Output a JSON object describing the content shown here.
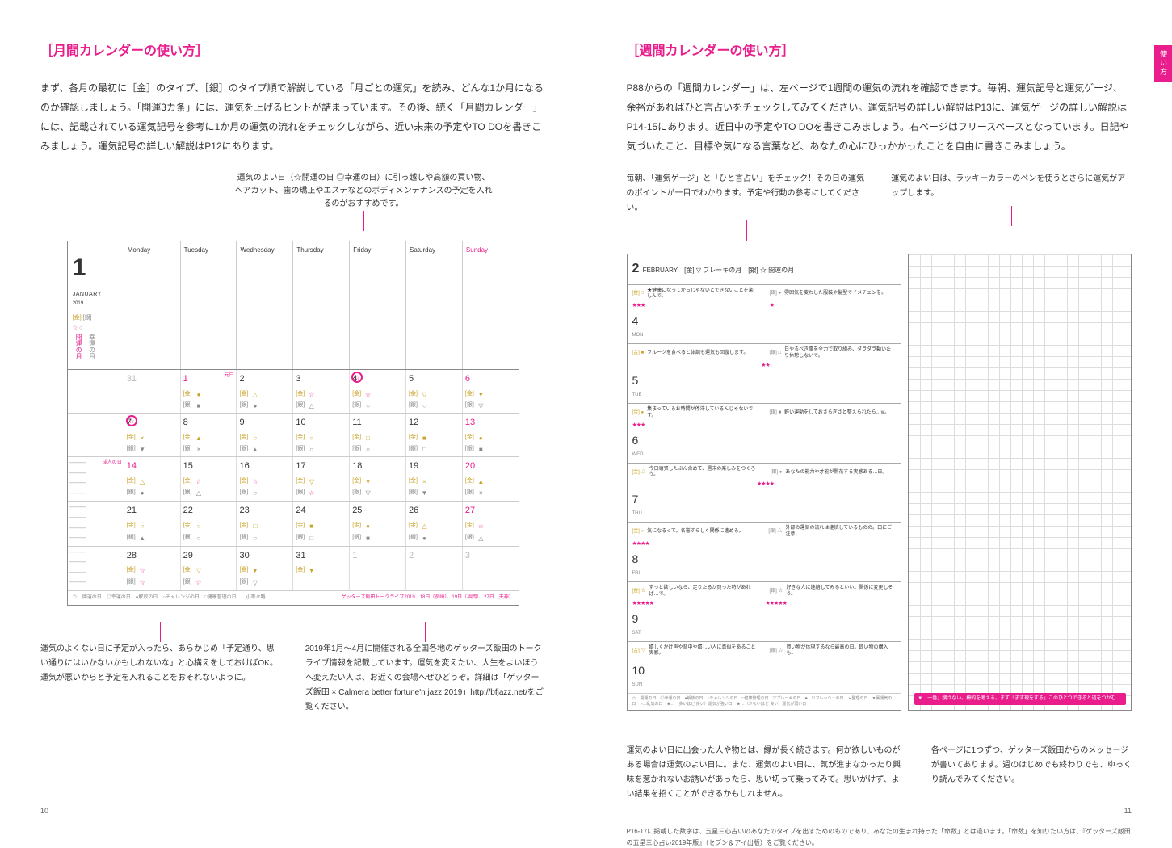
{
  "left": {
    "heading": "［月間カレンダーの使い方］",
    "body": "まず、各月の最初に［金］のタイプ、［銀］のタイプ順で解説している「月ごとの運気」を読み、どんな1か月になるのか確認しましょう。「開運3カ条」には、運気を上げるヒントが詰まっています。その後、続く「月間カレンダー」には、記載されている運気記号を参考に1か月の運気の流れをチェックしながら、近い未来の予定やTO DOを書きこみましょう。運気記号の詳しい解説はP12にあります。",
    "callout_top": "運気のよい日（☆開運の日 ◎幸運の日）に引っ越しや高額の買い物、ヘアカット、歯の矯正やエステなどのボディメンテナンスの予定を入れるのがおすすめです。",
    "calendar": {
      "month_num": "1",
      "month_label": "JANUARY",
      "year": "2019",
      "side_gold": "[金]",
      "side_silver": "[銀]",
      "side_gold_sym": "☆",
      "side_silver_sym": "○",
      "side_gold_text": "開運の月",
      "side_silver_text": "幸運の月",
      "wdays": [
        "Monday",
        "Tuesday",
        "Wednesday",
        "Thursday",
        "Friday",
        "Saturday",
        "Sunday"
      ],
      "weeks": [
        {
          "days": [
            {
              "n": "31",
              "grey": true,
              "sym": []
            },
            {
              "n": "1",
              "red": true,
              "tag": "元日",
              "sym": [
                [
                  "[金]",
                  "●",
                  "gold"
                ],
                [
                  "[銀]",
                  "■",
                  "silver"
                ]
              ]
            },
            {
              "n": "2",
              "sym": [
                [
                  "[金]",
                  "△",
                  "gold"
                ],
                [
                  "[銀]",
                  "●",
                  "silver"
                ]
              ]
            },
            {
              "n": "3",
              "sym": [
                [
                  "[金]",
                  "☆",
                  "star"
                ],
                [
                  "[銀]",
                  "△",
                  "silver"
                ]
              ]
            },
            {
              "n": "4",
              "circle": true,
              "sym": [
                [
                  "[金]",
                  "☆",
                  "star"
                ],
                [
                  "[銀]",
                  "○",
                  "silver"
                ]
              ]
            },
            {
              "n": "5",
              "sym": [
                [
                  "[金]",
                  "▽",
                  "gold"
                ],
                [
                  "[銀]",
                  "○",
                  "silver"
                ]
              ]
            },
            {
              "n": "6",
              "red": true,
              "sym": [
                [
                  "[金]",
                  "▼",
                  "gold"
                ],
                [
                  "[銀]",
                  "▽",
                  "silver"
                ]
              ]
            }
          ]
        },
        {
          "days": [
            {
              "n": "7",
              "sym": [
                [
                  "[金]",
                  "×",
                  "gold"
                ],
                [
                  "[銀]",
                  "▼",
                  "silver"
                ]
              ],
              "circle": true
            },
            {
              "n": "8",
              "sym": [
                [
                  "[金]",
                  "▲",
                  "gold"
                ],
                [
                  "[銀]",
                  "×",
                  "silver"
                ]
              ]
            },
            {
              "n": "9",
              "sym": [
                [
                  "[金]",
                  "○",
                  "gold"
                ],
                [
                  "[銀]",
                  "▲",
                  "silver"
                ]
              ]
            },
            {
              "n": "10",
              "sym": [
                [
                  "[金]",
                  "○",
                  "gold"
                ],
                [
                  "[銀]",
                  "○",
                  "silver"
                ]
              ]
            },
            {
              "n": "11",
              "sym": [
                [
                  "[金]",
                  "□",
                  "gold"
                ],
                [
                  "[銀]",
                  "○",
                  "silver"
                ]
              ]
            },
            {
              "n": "12",
              "sym": [
                [
                  "[金]",
                  "■",
                  "gold"
                ],
                [
                  "[銀]",
                  "□",
                  "silver"
                ]
              ]
            },
            {
              "n": "13",
              "red": true,
              "sym": [
                [
                  "[金]",
                  "●",
                  "gold"
                ],
                [
                  "[銀]",
                  "■",
                  "silver"
                ]
              ]
            }
          ]
        },
        {
          "tag": "成人の日",
          "days": [
            {
              "n": "14",
              "red": true,
              "sym": [
                [
                  "[金]",
                  "△",
                  "gold"
                ],
                [
                  "[銀]",
                  "●",
                  "silver"
                ]
              ]
            },
            {
              "n": "15",
              "sym": [
                [
                  "[金]",
                  "☆",
                  "star"
                ],
                [
                  "[銀]",
                  "△",
                  "silver"
                ]
              ]
            },
            {
              "n": "16",
              "sym": [
                [
                  "[金]",
                  "☆",
                  "star"
                ],
                [
                  "[銀]",
                  "○",
                  "silver"
                ]
              ]
            },
            {
              "n": "17",
              "sym": [
                [
                  "[金]",
                  "▽",
                  "gold"
                ],
                [
                  "[銀]",
                  "☆",
                  "star"
                ]
              ]
            },
            {
              "n": "18",
              "sym": [
                [
                  "[金]",
                  "▼",
                  "gold"
                ],
                [
                  "[銀]",
                  "▽",
                  "silver"
                ]
              ]
            },
            {
              "n": "19",
              "sym": [
                [
                  "[金]",
                  "×",
                  "gold"
                ],
                [
                  "[銀]",
                  "▼",
                  "silver"
                ]
              ]
            },
            {
              "n": "20",
              "red": true,
              "sym": [
                [
                  "[金]",
                  "▲",
                  "gold"
                ],
                [
                  "[銀]",
                  "×",
                  "silver"
                ]
              ]
            }
          ]
        },
        {
          "days": [
            {
              "n": "21",
              "sym": [
                [
                  "[金]",
                  "○",
                  "gold"
                ],
                [
                  "[銀]",
                  "▲",
                  "silver"
                ]
              ]
            },
            {
              "n": "22",
              "sym": [
                [
                  "[金]",
                  "○",
                  "gold"
                ],
                [
                  "[銀]",
                  "○",
                  "silver"
                ]
              ]
            },
            {
              "n": "23",
              "sym": [
                [
                  "[金]",
                  "□",
                  "gold"
                ],
                [
                  "[銀]",
                  "○",
                  "silver"
                ]
              ]
            },
            {
              "n": "24",
              "sym": [
                [
                  "[金]",
                  "■",
                  "gold"
                ],
                [
                  "[銀]",
                  "□",
                  "silver"
                ]
              ]
            },
            {
              "n": "25",
              "sym": [
                [
                  "[金]",
                  "●",
                  "gold"
                ],
                [
                  "[銀]",
                  "■",
                  "silver"
                ]
              ]
            },
            {
              "n": "26",
              "sym": [
                [
                  "[金]",
                  "△",
                  "gold"
                ],
                [
                  "[銀]",
                  "●",
                  "silver"
                ]
              ]
            },
            {
              "n": "27",
              "red": true,
              "sym": [
                [
                  "[金]",
                  "☆",
                  "star"
                ],
                [
                  "[銀]",
                  "△",
                  "silver"
                ]
              ]
            }
          ]
        },
        {
          "days": [
            {
              "n": "28",
              "sym": [
                [
                  "[金]",
                  "☆",
                  "star"
                ],
                [
                  "[銀]",
                  "☆",
                  "star"
                ]
              ]
            },
            {
              "n": "29",
              "sym": [
                [
                  "[金]",
                  "▽",
                  "gold"
                ],
                [
                  "[銀]",
                  "☆",
                  "star"
                ]
              ]
            },
            {
              "n": "30",
              "sym": [
                [
                  "[金]",
                  "▼",
                  "gold"
                ],
                [
                  "[銀]",
                  "▽",
                  "silver"
                ]
              ]
            },
            {
              "n": "31",
              "sym": [
                [
                  "[金]",
                  "▼",
                  "gold"
                ]
              ]
            },
            {
              "n": "1",
              "grey": true,
              "sym": []
            },
            {
              "n": "2",
              "grey": true,
              "sym": []
            },
            {
              "n": "3",
              "grey": true,
              "sym": []
            }
          ]
        }
      ],
      "legend": "☆…開運の日　◎幸運の日　●解放の日　○チャレンジの日　□健康管理の日　…小等々略",
      "tourinfo": "ゲッターズ飯田トークライブ2019　18日（長崎）、19日（福岡）、27日（天神）"
    },
    "bottom_left": "運気のよくない日に予定が入ったら、あらかじめ「予定通り、思い通りにはいかないかもしれないな」と心構えをしておけばOK。運気が悪いからと予定を入れることをおそれないように。",
    "bottom_right": "2019年1月〜4月に開催される全国各地のゲッターズ飯田のトークライブ情報を記載しています。運気を変えたい、人生をよいほうへ変えたい人は、お近くの会場へぜひどうぞ。詳細は「ゲッターズ飯田 × Calmera better fortune'n jazz 2019」http://bfjazz.net/をご覧ください。",
    "pagenum": "10"
  },
  "right": {
    "heading": "［週間カレンダーの使い方］",
    "body": "P88からの「週間カレンダー」は、左ページで1週間の運気の流れを確認できます。毎朝、運気記号と運気ゲージ、余裕があればひと言占いをチェックしてみてください。運気記号の詳しい解説はP13に、運気ゲージの詳しい解説はP14-15にあります。近日中の予定やTO DOを書きこみましょう。右ページはフリースペースとなっています。日記や気づいたこと、目標や気になる言葉など、あなたの心にひっかかったことを自由に書きこみましょう。",
    "upper_left": "毎朝、「運気ゲージ」と「ひと言占い」をチェック！その日の運気のポイントが一目でわかります。予定や行動の参考にしてください。",
    "upper_right": "運気のよい日は、ラッキーカラーのペンを使うとさらに運気がアップします。",
    "weekly": {
      "head_num": "2",
      "head_month": "FEBRUARY",
      "head_tags": "[金] ▽ ブレーキの月　[銀] ☆ 開運の月",
      "days": [
        {
          "n": "4",
          "dow": "MON",
          "g": "[金] □",
          "g_txt": "★健康になってからじゃないとできないことを楽しんで。",
          "g_stars": "★★★",
          "s": "[銀] ●",
          "s_txt": "雰囲気を変わした服装や髪型でイメチェンを。",
          "s_stars": "★"
        },
        {
          "n": "5",
          "dow": "TUE",
          "g": "[金] ■",
          "g_txt": "フルーツを食べると体調も運気も回復します。",
          "g_stars": "",
          "s": "[銀] □",
          "s_txt": "日やるべき事を全力で取り組み、ダラダラ動いたり休憩しないで。",
          "s_stars": "★★"
        },
        {
          "n": "6",
          "dow": "WED",
          "g": "[金] ●",
          "g_txt": "集まっているお時間が停滞しているんじゃないです。",
          "g_stars": "★★★",
          "s": "[銀] ■",
          "s_txt": "軽い運動をしておさらぎさと整えられたら…w。",
          "s_stars": ""
        },
        {
          "n": "7",
          "dow": "THU",
          "g": "[金] △",
          "g_txt": "今日頑張したぶん含めて、週末の楽しみをつくろう。",
          "g_stars": "",
          "s": "[銀] ●",
          "s_txt": "あなたの能力や才能が開花する実感ある…日。",
          "s_stars": "★★★★"
        },
        {
          "n": "8",
          "dow": "FRI",
          "g": "[金] ○",
          "g_txt": "気になるって。名誉すらしく関係に進める。",
          "g_stars": "★★★★",
          "s": "[銀] △",
          "s_txt": "外部の運気の流れは継続しているものの。口にご注意。",
          "s_stars": ""
        },
        {
          "n": "9",
          "dow": "SAT",
          "g": "[金] ☆",
          "g_txt": "ずっと欲しいなら、足りたるが買った時があれば…で。",
          "g_stars": "★★★★★",
          "s": "[銀] ☆",
          "s_txt": "好きな人に連絡してみるといい。関係に変更しそう。",
          "s_stars": "★★★★★"
        },
        {
          "n": "10",
          "dow": "SUN",
          "g": "[金] ▽",
          "g_txt": "嬉しくかけ声や背中や嬉しい人に真似をあること実感。",
          "g_stars": "",
          "s": "[銀] ☆",
          "s_txt": "買い物が体現するなら最高の日。即い物の購入も。",
          "s_stars": ""
        }
      ],
      "legend": "☆…開運の日　◎幸運の日　●解放の日　○チャレンジの日　□健康管理の日　▽ブレーキの日　■…リフレッシュの日　▲整理の日　▼裏運気の日　×…乱気の日　★…（多いほど 良い）運気が強い日　★…（少ないほど 良い）運気が弱い日",
      "pink_strip": "▼「一番」捜さない。標的を考える。まず「まず現をする」このひとつできると道をつかむ"
    },
    "bottom_left": "運気のよい日に出会った人や物とは、縁が長く続きます。何か欲しいものがある場合は運気のよい日に。また、運気のよい日に、気が進まなかったり興味を惹かれないお誘いがあったら、思い切って乗ってみて。思いがけず、よい結果を招くことができるかもしれません。",
    "bottom_right": "各ページに1つずつ、ゲッターズ飯田からのメッセージが書いてあります。週のはじめでも終わりでも、ゆっくり読んでみてください。",
    "footnote": "P16-17に掲載した数字は、五星三心占いのあなたのタイプを出すためのものであり、あなたの生まれ持った「命数」とは違います。「命数」を知りたい方は、『ゲッターズ飯田の五星三心占い2019年版』（セブン＆アイ出版）をご覧ください。",
    "pagenum": "11",
    "tab": "使い方"
  }
}
